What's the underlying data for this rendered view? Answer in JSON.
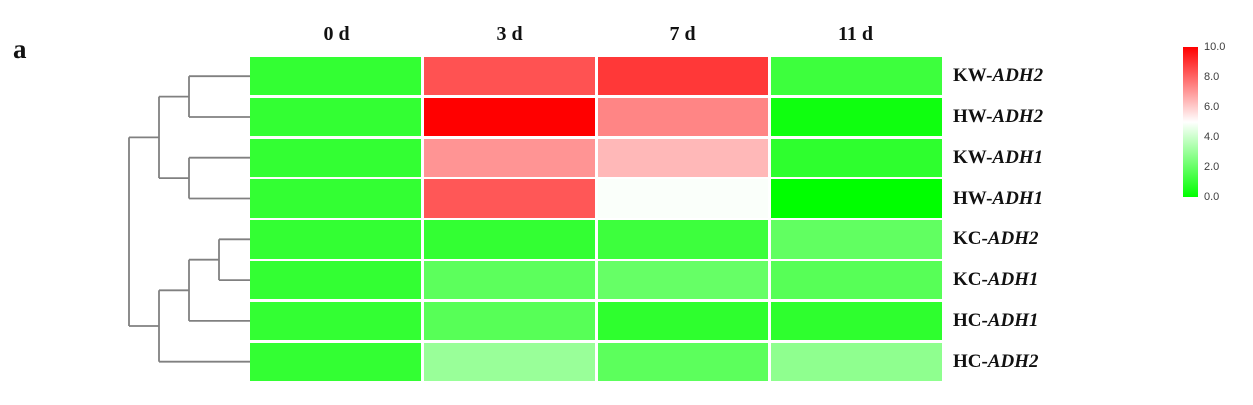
{
  "panel_label": "a",
  "chart_data": {
    "type": "heatmap",
    "title": "",
    "columns": [
      "0 d",
      "3 d",
      "7 d",
      "11 d"
    ],
    "rows": [
      {
        "prefix": "KW-",
        "gene": "ADH2",
        "values": [
          1.0,
          8.4,
          8.9,
          1.2
        ]
      },
      {
        "prefix": "HW-",
        "gene": "ADH2",
        "values": [
          1.0,
          10.0,
          7.4,
          0.3
        ]
      },
      {
        "prefix": "KW-",
        "gene": "ADH1",
        "values": [
          1.0,
          7.1,
          6.4,
          0.9
        ]
      },
      {
        "prefix": "HW-",
        "gene": "ADH1",
        "values": [
          1.0,
          8.3,
          4.9,
          0.0
        ]
      },
      {
        "prefix": "KC-",
        "gene": "ADH2",
        "values": [
          1.0,
          1.0,
          1.2,
          1.9
        ]
      },
      {
        "prefix": "KC-",
        "gene": "ADH1",
        "values": [
          1.0,
          1.8,
          2.0,
          1.7
        ]
      },
      {
        "prefix": "HC-",
        "gene": "ADH1",
        "values": [
          1.0,
          1.7,
          0.9,
          0.9
        ]
      },
      {
        "prefix": "HC-",
        "gene": "ADH2",
        "values": [
          1.0,
          3.0,
          1.8,
          2.8
        ]
      }
    ],
    "colormap": {
      "low": "#00ff00",
      "mid": "#ffffff",
      "high": "#ff0000",
      "domain": [
        0,
        5,
        10
      ]
    },
    "legend": {
      "ticks": [
        "10.0",
        "8.0",
        "6.0",
        "4.0",
        "2.0",
        "0.0"
      ],
      "min": 0.0,
      "max": 10.0,
      "position": "right"
    },
    "grid": false
  },
  "dendrogram": {
    "line_color": "#808080",
    "segments": [
      [
        189,
        76.2,
        252,
        76.2
      ],
      [
        189,
        117.0,
        252,
        117.0
      ],
      [
        189,
        76.2,
        189,
        117.0
      ],
      [
        159,
        96.6,
        189,
        96.6
      ],
      [
        189,
        157.7,
        252,
        157.7
      ],
      [
        189,
        198.5,
        252,
        198.5
      ],
      [
        189,
        157.7,
        189,
        198.5
      ],
      [
        159,
        178.1,
        189,
        178.1
      ],
      [
        159,
        96.6,
        159,
        178.1
      ],
      [
        129,
        137.4,
        159,
        137.4
      ],
      [
        219,
        239.3,
        252,
        239.3
      ],
      [
        219,
        280.1,
        252,
        280.1
      ],
      [
        219,
        239.3,
        219,
        280.1
      ],
      [
        189,
        259.7,
        219,
        259.7
      ],
      [
        189,
        320.9,
        252,
        320.9
      ],
      [
        189,
        259.7,
        189,
        320.9
      ],
      [
        159,
        290.3,
        189,
        290.3
      ],
      [
        159,
        361.7,
        252,
        361.7
      ],
      [
        159,
        290.3,
        159,
        361.7
      ],
      [
        129,
        326.0,
        159,
        326.0
      ],
      [
        129,
        137.4,
        129,
        326.0
      ]
    ]
  },
  "layout_text": {
    "row_label_note": "gene names italic"
  }
}
